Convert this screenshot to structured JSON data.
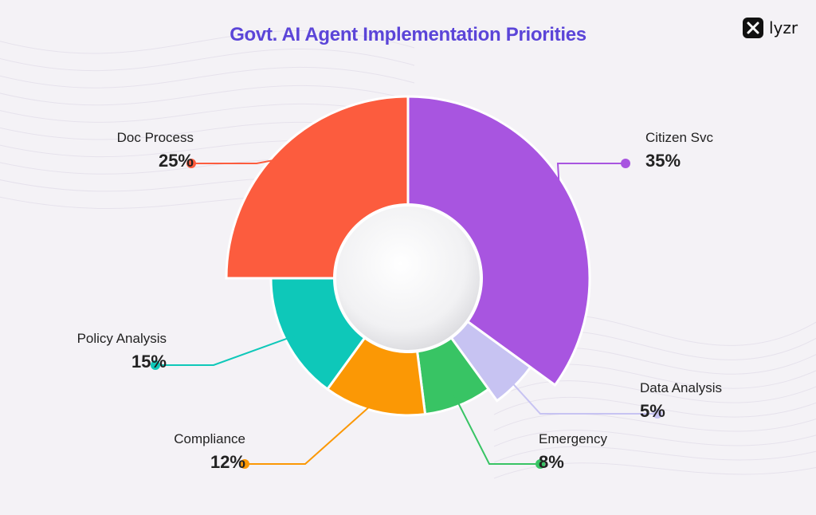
{
  "header": {
    "title": "Govt. AI Agent Implementation Priorities",
    "brand": "lyzr"
  },
  "chart_data": {
    "type": "pie",
    "style": "donut",
    "title": "Govt. AI Agent Implementation Priorities",
    "categories": [
      "Citizen Svc",
      "Data Analysis",
      "Emergency",
      "Compliance",
      "Policy Analysis",
      "Doc Process"
    ],
    "values": [
      35,
      5,
      8,
      12,
      15,
      25
    ],
    "labels": [
      "35%",
      "5%",
      "8%",
      "12%",
      "15%",
      "25%"
    ],
    "colors": [
      "#a855e0",
      "#c7c3f2",
      "#38c464",
      "#fb9805",
      "#0ec8b9",
      "#fc5c3e"
    ],
    "legend": "callout-labels"
  }
}
